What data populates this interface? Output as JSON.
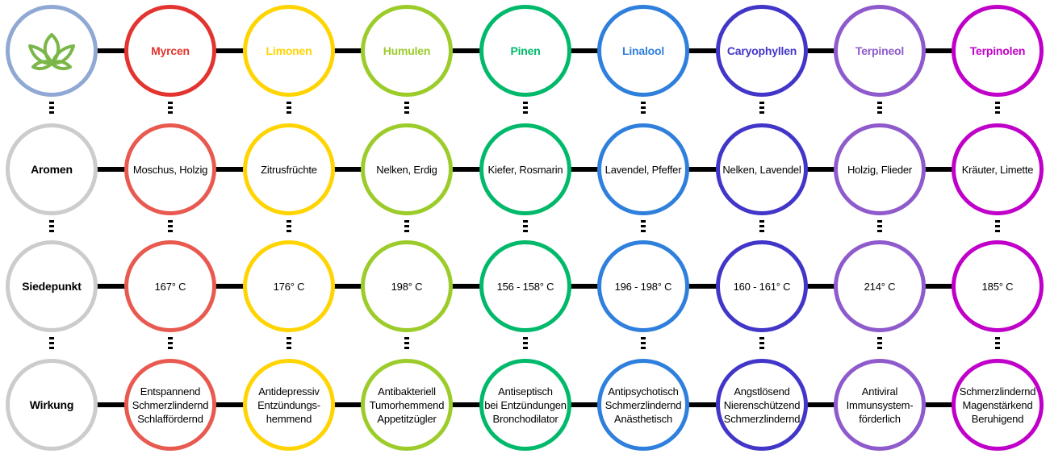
{
  "logo": {
    "icon": "leaf-icon",
    "border_color": "#8fa8d4",
    "leaf_color": "#7ab648"
  },
  "row_labels": {
    "border_color": "#cccccc",
    "items": [
      "Aromen",
      "Siedepunkt",
      "Wirkung"
    ]
  },
  "terpenes": [
    {
      "name": "Myrcen",
      "color": "#e3342f",
      "row_color": "#e85a50",
      "aroma": "Moschus, Holzig",
      "boiling": "167° C",
      "effect": "Entspannend\nSchmerzlindernd\nSchlaffördernd"
    },
    {
      "name": "Limonen",
      "color": "#ffd400",
      "row_color": "#ffd400",
      "aroma": "Zitrusfrüchte",
      "boiling": "176° C",
      "effect": "Antidepressiv\nEntzündungs-\nhemmend"
    },
    {
      "name": "Humulen",
      "color": "#9ccc2a",
      "row_color": "#9ccc2a",
      "aroma": "Nelken, Erdig",
      "boiling": "198° C",
      "effect": "Antibakteriell\nTumorhemmend\nAppetitzügler"
    },
    {
      "name": "Pinen",
      "color": "#00b96b",
      "row_color": "#00b96b",
      "aroma": "Kiefer, Rosmarin",
      "boiling": "156 - 158° C",
      "effect": "Antiseptisch\nbei Entzündungen\nBronchodilator"
    },
    {
      "name": "Linalool",
      "color": "#2f7fdd",
      "row_color": "#2f7fdd",
      "aroma": "Lavendel, Pfeffer",
      "boiling": "196 - 198° C",
      "effect": "Antipsychotisch\nSchmerzlindernd\nAnästhetisch"
    },
    {
      "name": "Caryophyllen",
      "color": "#4236c9",
      "row_color": "#4236c9",
      "aroma": "Nelken, Lavendel",
      "boiling": "160 - 161° C",
      "effect": "Angstlösend\nNierenschützend\nSchmerzlindernd"
    },
    {
      "name": "Terpineol",
      "color": "#8e5acc",
      "row_color": "#8e5acc",
      "aroma": "Holzig, Flieder",
      "boiling": "214° C",
      "effect": "Antiviral\nImmunsystem-\nförderlich"
    },
    {
      "name": "Terpinolen",
      "color": "#c000c9",
      "row_color": "#c000c9",
      "aroma": "Kräuter, Limette",
      "boiling": "185° C",
      "effect": "Schmerzlindernd\nMagenstärkend\nBeruhigend"
    }
  ]
}
